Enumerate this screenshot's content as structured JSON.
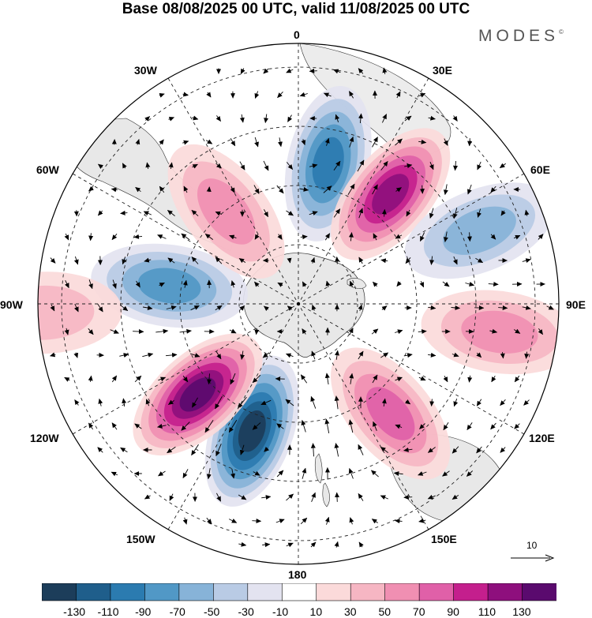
{
  "title": "Base 08/08/2025 00 UTC, valid 11/08/2025 00 UTC",
  "brand": "MODES",
  "brand_mark": "©",
  "longitude_labels": {
    "lon_0": "0",
    "lon_30E": "30E",
    "lon_60E": "60E",
    "lon_90E": "90E",
    "lon_120E": "120E",
    "lon_150E": "150E",
    "lon_180": "180",
    "lon_150W": "150W",
    "lon_120W": "120W",
    "lon_90W": "90W",
    "lon_60W": "60W",
    "lon_30W": "30W"
  },
  "wind_reference_label": "10",
  "colorbar": {
    "colors": [
      "#1c3d5a",
      "#1f5e8b",
      "#2b7bb0",
      "#5198c6",
      "#87b3d8",
      "#b9cbe5",
      "#e3e3f0",
      "#ffffff",
      "#fbdada",
      "#f6b6c3",
      "#f08fb2",
      "#e060a8",
      "#c41f8d",
      "#8e0f7d",
      "#5a0a6e"
    ],
    "tick_labels": [
      "-130",
      "-110",
      "-90",
      "-70",
      "-50",
      "-30",
      "-10",
      "10",
      "30",
      "50",
      "70",
      "90",
      "110",
      "130"
    ]
  },
  "anomaly_centers": [
    {
      "name": "negative-anomaly-0E",
      "lat_ring": 0.55,
      "lon_deg": 12,
      "sign": -1,
      "peak": -95
    },
    {
      "name": "positive-anomaly-40E",
      "lat_ring": 0.55,
      "lon_deg": 40,
      "sign": 1,
      "peak": 105
    },
    {
      "name": "negative-anomaly-65E",
      "lat_ring": 0.75,
      "lon_deg": 68,
      "sign": -1,
      "peak": -55
    },
    {
      "name": "positive-anomaly-95E",
      "lat_ring": 0.78,
      "lon_deg": 98,
      "sign": 1,
      "peak": 45
    },
    {
      "name": "positive-anomaly-140E",
      "lat_ring": 0.55,
      "lon_deg": 140,
      "sign": 1,
      "peak": 75
    },
    {
      "name": "negative-anomaly-165W",
      "lat_ring": 0.52,
      "lon_deg": 200,
      "sign": -1,
      "peak": -125
    },
    {
      "name": "positive-anomaly-135W",
      "lat_ring": 0.52,
      "lon_deg": 228,
      "sign": 1,
      "peak": 120
    },
    {
      "name": "negative-anomaly-85W",
      "lat_ring": 0.5,
      "lon_deg": 278,
      "sign": -1,
      "peak": -70
    },
    {
      "name": "positive-anomaly-30W",
      "lat_ring": 0.45,
      "lon_deg": 322,
      "sign": 1,
      "peak": 55
    },
    {
      "name": "positive-anomaly-100W",
      "lat_ring": 0.98,
      "lon_deg": 268,
      "sign": 1,
      "peak": 35
    }
  ]
}
